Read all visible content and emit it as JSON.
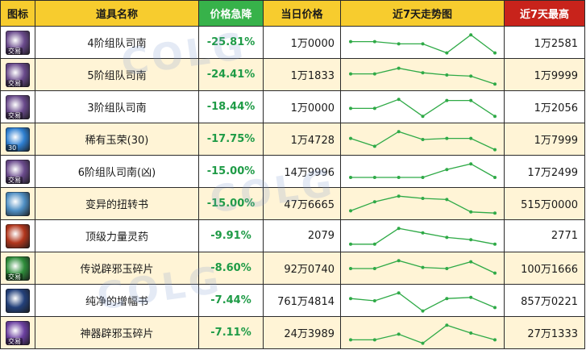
{
  "header": {
    "icon": "图标",
    "name": "道具名称",
    "drop": "价格急降",
    "today": "当日价格",
    "trend": "近7天走势图",
    "max": "近7天最高"
  },
  "colors": {
    "header_bg": "#f7cc2e",
    "drop_header_bg": "#37b24a",
    "max_header_bg": "#c8231b",
    "drop_text": "#1e9b46",
    "trend_line": "#2faa47",
    "row_alt": "#fff4d6"
  },
  "rows": [
    {
      "icon": "stacked-orbs-purple-icon",
      "icon_color": "#6a4a8c",
      "badge": "交易",
      "name": "4阶组队司南",
      "drop": "-25.81%",
      "today": "1万0000",
      "max": "1万2581",
      "trend": [
        0.55,
        0.55,
        0.45,
        0.45,
        0.05,
        0.85,
        0.05
      ]
    },
    {
      "icon": "stacked-orbs-purple-icon",
      "icon_color": "#6a4a8c",
      "badge": "交易",
      "name": "5阶组队司南",
      "drop": "-24.41%",
      "today": "1万1833",
      "max": "1万9999",
      "trend": [
        0.55,
        0.55,
        0.8,
        0.6,
        0.5,
        0.45,
        0.1
      ]
    },
    {
      "icon": "stacked-orbs-purple-icon",
      "icon_color": "#6a4a8c",
      "badge": "交易",
      "name": "3阶组队司南",
      "drop": "-18.44%",
      "today": "1万0000",
      "max": "1万2056",
      "trend": [
        0.45,
        0.45,
        0.85,
        0.1,
        0.8,
        0.8,
        0.1
      ]
    },
    {
      "icon": "jade-orb-icon",
      "icon_color": "#2e7fd1",
      "badge": "30",
      "name": "稀有玉荣(30)",
      "drop": "-17.75%",
      "today": "1万4728",
      "max": "1万7999",
      "trend": [
        0.55,
        0.2,
        0.85,
        0.5,
        0.55,
        0.55,
        0.05
      ]
    },
    {
      "icon": "stacked-orbs-purple-icon",
      "icon_color": "#6a4a8c",
      "badge": "交易",
      "name": "6阶组队司南(凶)",
      "drop": "-15.00%",
      "today": "14万9996",
      "max": "17万2499",
      "trend": [
        0.25,
        0.25,
        0.25,
        0.25,
        0.6,
        0.85,
        0.25
      ]
    },
    {
      "icon": "open-book-icon",
      "icon_color": "#4f8fc4",
      "badge": "",
      "name": "变异的扭转书",
      "drop": "-15.00%",
      "today": "47万6665",
      "max": "515万0000",
      "trend": [
        0.2,
        0.6,
        0.85,
        0.75,
        0.7,
        0.15,
        0.1
      ]
    },
    {
      "icon": "flame-potion-icon",
      "icon_color": "#b2361c",
      "badge": "",
      "name": "顶级力量灵药",
      "drop": "-9.91%",
      "today": "2079",
      "max": "2771",
      "trend": [
        0.15,
        0.15,
        0.85,
        0.65,
        0.45,
        0.35,
        0.15
      ]
    },
    {
      "icon": "green-jade-shard-icon",
      "icon_color": "#2e8c3a",
      "badge": "交易",
      "name": "传说辟邪玉碎片",
      "drop": "-8.60%",
      "today": "92万0740",
      "max": "100万1666",
      "trend": [
        0.5,
        0.5,
        0.85,
        0.55,
        0.5,
        0.8,
        0.3
      ]
    },
    {
      "icon": "blue-crystal-icon",
      "icon_color": "#23407a",
      "badge": "",
      "name": "纯净的增幅书",
      "drop": "-7.44%",
      "today": "761万4814",
      "max": "857万0221",
      "trend": [
        0.6,
        0.5,
        0.85,
        0.05,
        0.6,
        0.65,
        0.2
      ]
    },
    {
      "icon": "purple-jade-shard-icon",
      "icon_color": "#6b3fa0",
      "badge": "交易",
      "name": "神器辟邪玉碎片",
      "drop": "-7.11%",
      "today": "24万3989",
      "max": "27万1333",
      "trend": [
        0.2,
        0.2,
        0.45,
        0.05,
        0.85,
        0.5,
        0.2
      ]
    }
  ]
}
